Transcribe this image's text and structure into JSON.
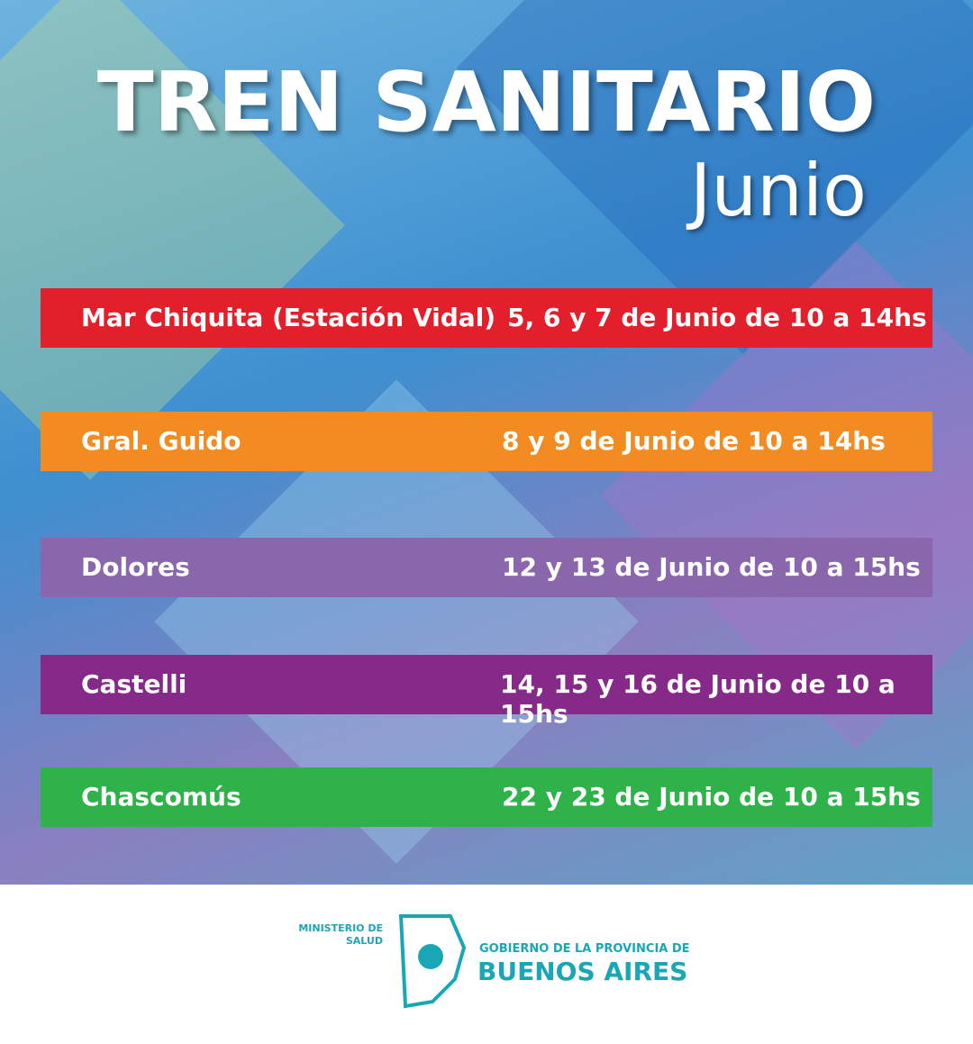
{
  "header": {
    "title": "TREN SANITARIO",
    "subtitle": "Junio"
  },
  "schedule": [
    {
      "place": "Mar Chiquita (Estación Vidal)",
      "dates": "5, 6 y 7 de Junio de 10 a 14hs",
      "color": "#e21f2b"
    },
    {
      "place": "Gral. Guido",
      "dates": "8 y 9 de Junio de 10 a 14hs",
      "color": "#f28c22"
    },
    {
      "place": "Dolores",
      "dates": "12 y 13 de Junio de 10 a 15hs",
      "color": "#8a67ad"
    },
    {
      "place": "Castelli",
      "dates": "14, 15 y 16 de Junio de 10 a 15hs",
      "color": "#862a8a"
    },
    {
      "place": "Chascomús",
      "dates": "22 y 23 de Junio de 10 a 15hs",
      "color": "#2fb24a"
    }
  ],
  "footer": {
    "ministry": "MINISTERIO DE SALUD",
    "government": "GOBIERNO DE LA PROVINCIA DE",
    "province": "BUENOS AIRES"
  }
}
